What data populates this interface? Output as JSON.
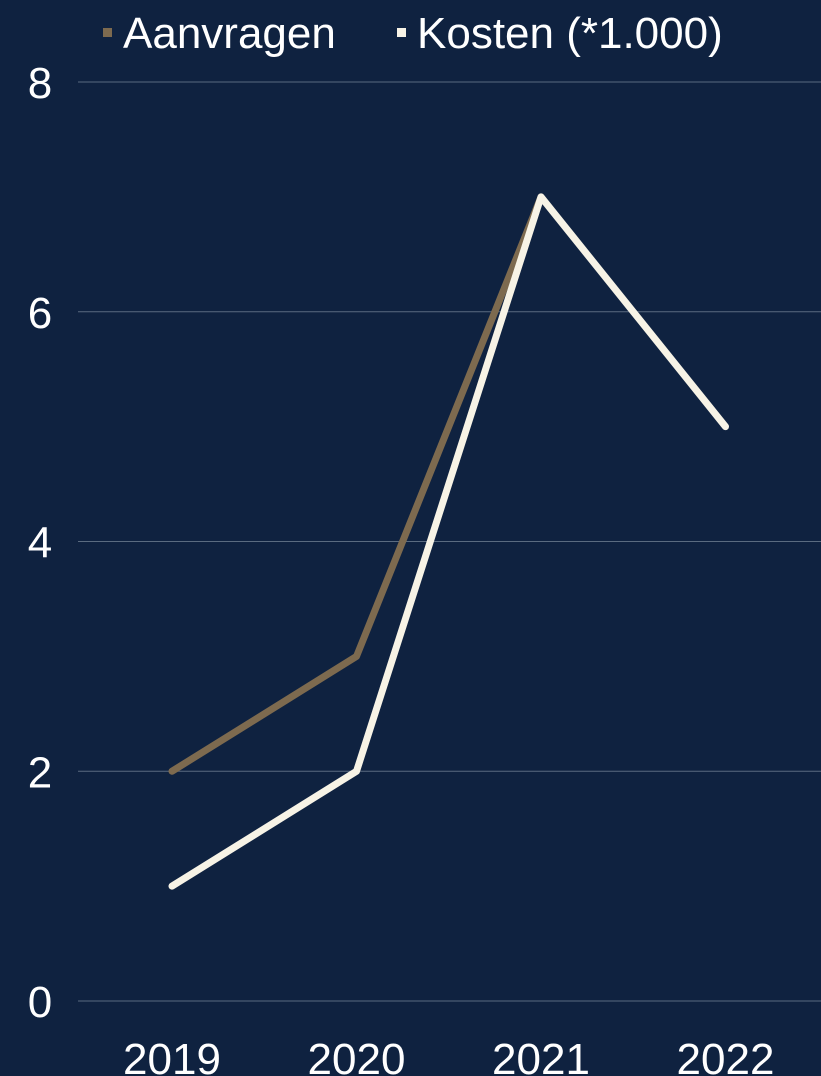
{
  "colors": {
    "background": "#0f2240",
    "grid": "#5a6b80",
    "text": "#ffffff"
  },
  "chart_data": {
    "type": "line",
    "title": "",
    "xlabel": "",
    "ylabel": "",
    "categories": [
      "2019",
      "2020",
      "2021",
      "2022"
    ],
    "ylim": [
      0,
      8
    ],
    "yticks": [
      "0",
      "2",
      "4",
      "6",
      "8"
    ],
    "grid": true,
    "legend_position": "top",
    "series": [
      {
        "name": "Aanvragen",
        "color": "#7d6a4f",
        "values": [
          2,
          3,
          7,
          null
        ]
      },
      {
        "name": "Kosten (*1.000)",
        "color": "#f7f3e6",
        "values": [
          1,
          2,
          7,
          5
        ]
      }
    ]
  }
}
